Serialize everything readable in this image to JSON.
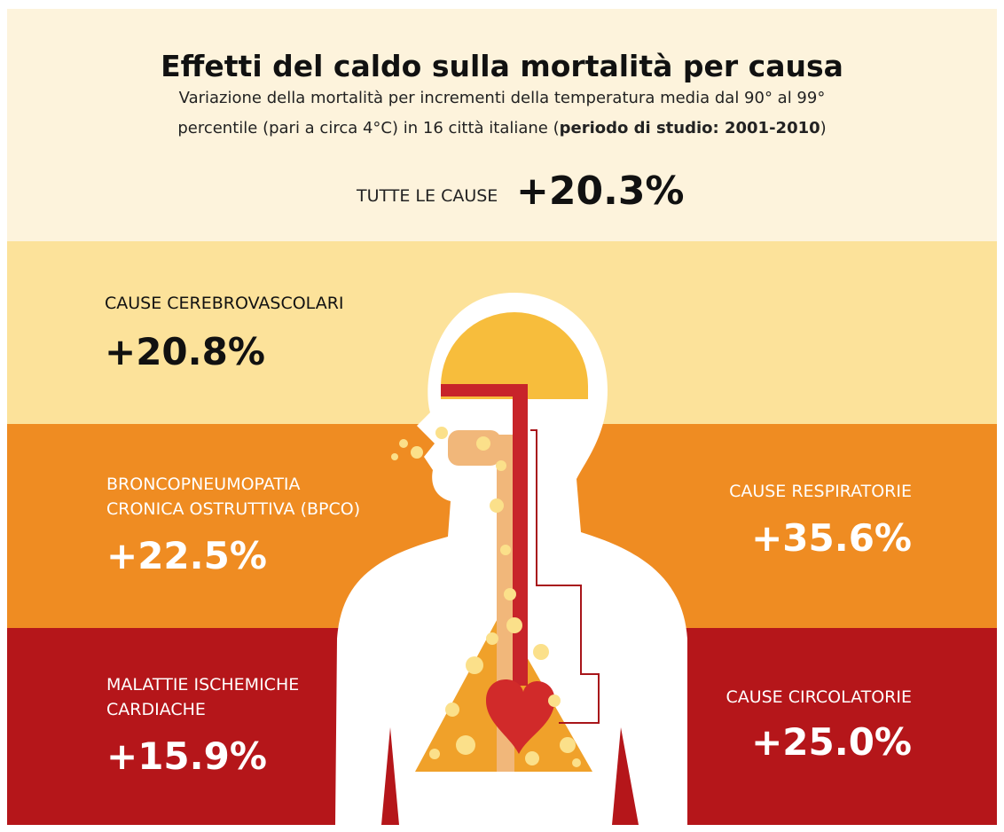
{
  "header": {
    "title": "Effetti del caldo sulla mortalità per causa",
    "subtitle": {
      "line1": "Variazione della mortalità per incrementi della temperatura media dal 90° al 99°",
      "line2_start": "percentile (pari a circa 4°C) in 16 città italiane (",
      "line2_bold": "periodo di studio: 2001-2010",
      "line2_end": ")"
    },
    "total": {
      "label": "TUTTE LE CAUSE",
      "value": "+20.3%"
    }
  },
  "causes": [
    {
      "label": [
        "CAUSE CEREBROVASCOLARI"
      ],
      "value": "+20.8%"
    },
    {
      "label": [
        "BRONCOPNEUMOPATIA",
        "CRONICA OSTRUTTIVA (BPCO)"
      ],
      "value": "+22.5%"
    },
    {
      "label": [
        "CAUSE RESPIRATORIE"
      ],
      "value": "+35.6%"
    },
    {
      "label": [
        "MALATTIE ISCHEMICHE",
        "CARDIACHE"
      ],
      "value": "+15.9%"
    },
    {
      "label": [
        "CAUSE CIRCOLATORIE"
      ],
      "value": "+25.0%"
    }
  ]
}
